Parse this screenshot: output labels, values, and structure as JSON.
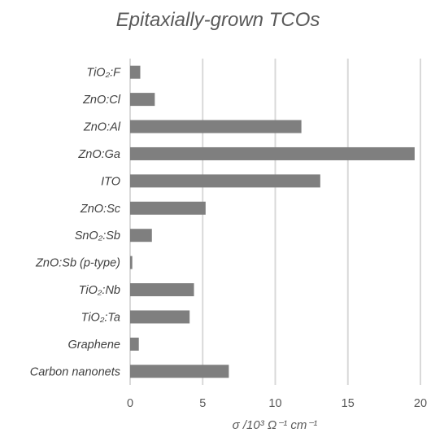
{
  "chart_data": {
    "type": "bar",
    "orientation": "horizontal",
    "title": "Epitaxially-grown TCOs",
    "xlabel": "σ /10³ Ω⁻¹ cm⁻¹",
    "ylabel": "",
    "categories": [
      "TiO₂:F",
      "ZnO:Cl",
      "ZnO:Al",
      "ZnO:Ga",
      "ITO",
      "ZnO:Sc",
      "SnO₂:Sb",
      "ZnO:Sb (p-type)",
      "TiO₂:Nb",
      "TiO₂:Ta",
      "Graphene",
      "Carbon nanonets"
    ],
    "values": [
      0.7,
      1.7,
      11.8,
      19.6,
      13.1,
      5.2,
      1.5,
      0.15,
      4.4,
      4.1,
      0.6,
      6.8
    ],
    "xlim": [
      0,
      20
    ],
    "xticks": [
      "0",
      "5",
      "10",
      "15",
      "20"
    ],
    "grid": true,
    "bar_color": "#7f7f7f",
    "grid_color": "#d9d9d9",
    "text_color": "#595959"
  }
}
